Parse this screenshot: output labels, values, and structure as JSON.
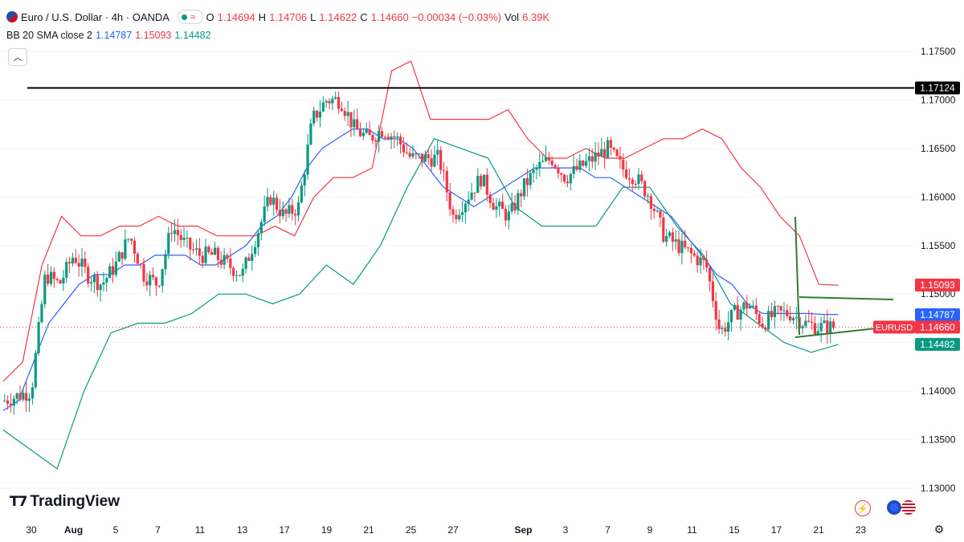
{
  "header": {
    "symbol": "Euro / U.S. Dollar · 4h · OANDA",
    "open_label": "O",
    "open": "1.14694",
    "high_label": "H",
    "high": "1.14706",
    "low_label": "L",
    "low": "1.14622",
    "close_label": "C",
    "close": "1.14660",
    "change": "−0.00034 (−0.03%)",
    "vol_label": "Vol",
    "vol": "6.39K"
  },
  "indicator": {
    "label": "BB 20 SMA close 2",
    "basis": "1.14787",
    "upper": "1.15093",
    "lower": "1.14482"
  },
  "branding": {
    "logo_text": "TradingView"
  },
  "colors": {
    "up": "#089981",
    "down": "#f23645",
    "basis": "#2962ff",
    "upper_band": "#f23645",
    "lower_band": "#089981",
    "resistance": "#000000",
    "triangle": "#2e7d32"
  },
  "chart_data": {
    "type": "candlestick",
    "title": "Euro / U.S. Dollar · 4h · OANDA",
    "ylim": [
      1.128,
      1.1785
    ],
    "y_ticks": [
      "1.17500",
      "1.17000",
      "1.16500",
      "1.16000",
      "1.15500",
      "1.15000",
      "1.14500",
      "1.14000",
      "1.13500",
      "1.13000"
    ],
    "y_tick_values": [
      1.175,
      1.17,
      1.165,
      1.16,
      1.155,
      1.15,
      1.145,
      1.14,
      1.135,
      1.13
    ],
    "x_ticks": [
      "30",
      "Aug",
      "5",
      "7",
      "11",
      "13",
      "17",
      "19",
      "21",
      "25",
      "27",
      "Sep",
      "3",
      "7",
      "9",
      "11",
      "15",
      "17",
      "21",
      "23"
    ],
    "x_tick_values": [
      0,
      1.5,
      3,
      4.5,
      6,
      7.5,
      9,
      10.5,
      12,
      13.5,
      15,
      17.5,
      19,
      20.5,
      22,
      23.5,
      25,
      26.5,
      28,
      29.5
    ],
    "x_range": [
      -1,
      31
    ],
    "current_price": 1.1466,
    "current_label": "EURUSD",
    "current_price_label": "1.14660",
    "resistance_level": 1.17124,
    "resistance_label": "1.17124",
    "basis_label": "1.14787",
    "upper_label": "1.15093",
    "lower_label": "1.14482",
    "price_path_x": [
      -1,
      0,
      0.5,
      1,
      1.5,
      2,
      2.5,
      3,
      3.5,
      4,
      4.5,
      5,
      5.5,
      6,
      6.5,
      7,
      7.5,
      8,
      8.5,
      9,
      9.5,
      10,
      10.5,
      11,
      11.5,
      12,
      12.5,
      13,
      13.5,
      14,
      14.5,
      15,
      15.5,
      16,
      16.5,
      17,
      17.5,
      18,
      18.5,
      19,
      19.5,
      20,
      20.5,
      21,
      21.5,
      22,
      22.5,
      23,
      23.5,
      24,
      24.5,
      25,
      25.5,
      26,
      26.5,
      27,
      27.5,
      28,
      28.5
    ],
    "price_path_y": [
      1.139,
      1.14,
      1.152,
      1.151,
      1.154,
      1.152,
      1.151,
      1.153,
      1.156,
      1.152,
      1.151,
      1.157,
      1.155,
      1.154,
      1.154,
      1.153,
      1.152,
      1.156,
      1.16,
      1.158,
      1.159,
      1.168,
      1.17,
      1.17,
      1.167,
      1.166,
      1.167,
      1.166,
      1.164,
      1.164,
      1.164,
      1.158,
      1.16,
      1.162,
      1.159,
      1.158,
      1.161,
      1.163,
      1.164,
      1.162,
      1.163,
      1.164,
      1.165,
      1.163,
      1.162,
      1.16,
      1.156,
      1.155,
      1.154,
      1.153,
      1.146,
      1.148,
      1.149,
      1.147,
      1.148,
      1.148,
      1.147,
      1.1466,
      1.1466
    ],
    "basis_band": [
      1.138,
      1.139,
      1.143,
      1.147,
      1.149,
      1.151,
      1.152,
      1.152,
      1.153,
      1.153,
      1.154,
      1.154,
      1.154,
      1.153,
      1.153,
      1.154,
      1.155,
      1.157,
      1.158,
      1.16,
      1.163,
      1.165,
      1.166,
      1.167,
      1.167,
      1.166,
      1.166,
      1.165,
      1.163,
      1.161,
      1.16,
      1.159,
      1.16,
      1.161,
      1.162,
      1.163,
      1.163,
      1.163,
      1.163,
      1.162,
      1.162,
      1.161,
      1.16,
      1.159,
      1.158,
      1.156,
      1.154,
      1.152,
      1.151,
      1.149,
      1.148,
      1.148,
      1.148,
      1.148,
      1.1479,
      1.1479
    ],
    "upper_band": [
      1.141,
      1.143,
      1.153,
      1.158,
      1.156,
      1.156,
      1.157,
      1.157,
      1.158,
      1.157,
      1.157,
      1.156,
      1.156,
      1.156,
      1.157,
      1.156,
      1.16,
      1.162,
      1.162,
      1.163,
      1.173,
      1.174,
      1.168,
      1.168,
      1.168,
      1.168,
      1.169,
      1.166,
      1.164,
      1.164,
      1.165,
      1.164,
      1.164,
      1.165,
      1.166,
      1.166,
      1.167,
      1.166,
      1.163,
      1.161,
      1.158,
      1.156,
      1.151,
      1.1509
    ],
    "lower_band": [
      1.136,
      1.134,
      1.132,
      1.14,
      1.146,
      1.147,
      1.147,
      1.148,
      1.15,
      1.15,
      1.149,
      1.15,
      1.153,
      1.151,
      1.155,
      1.161,
      1.166,
      1.165,
      1.164,
      1.159,
      1.157,
      1.157,
      1.157,
      1.161,
      1.161,
      1.157,
      1.154,
      1.149,
      1.147,
      1.145,
      1.144,
      1.1448
    ]
  }
}
